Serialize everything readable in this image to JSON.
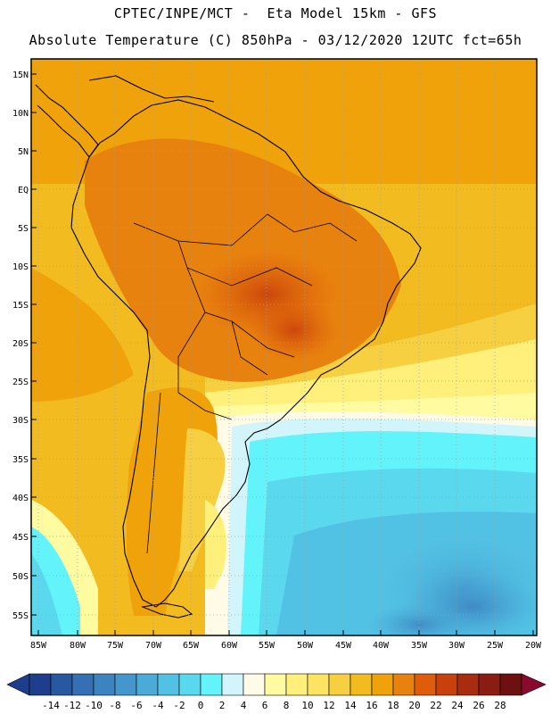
{
  "header": {
    "line1": "CPTEC/INPE/MCT -  Eta Model 15km - GFS",
    "line2": "Absolute Temperature (C) 850hPa - 03/12/2020 12UTC fct=65h"
  },
  "map": {
    "lat_labels": [
      "15N",
      "10N",
      "5N",
      "EQ",
      "5S",
      "10S",
      "15S",
      "20S",
      "25S",
      "30S",
      "35S",
      "40S",
      "45S",
      "50S",
      "55S"
    ],
    "lon_labels": [
      "85W",
      "80W",
      "75W",
      "70W",
      "65W",
      "60W",
      "55W",
      "50W",
      "45W",
      "40W",
      "35W",
      "30W",
      "25W",
      "20W"
    ]
  },
  "colorbar": {
    "labels": [
      "-14",
      "-12",
      "-10",
      "-8",
      "-6",
      "-4",
      "-2",
      "0",
      "2",
      "4",
      "6",
      "8",
      "10",
      "12",
      "14",
      "16",
      "18",
      "20",
      "22",
      "24",
      "26",
      "28"
    ],
    "colors": [
      "#1c3e8c",
      "#2858a0",
      "#3370b4",
      "#3b84c0",
      "#4497cc",
      "#4aabd8",
      "#52c2e4",
      "#5ad9ee",
      "#63f4fb",
      "#d2f5fb",
      "#fffbe6",
      "#fffba0",
      "#fff07c",
      "#fde362",
      "#f6d040",
      "#f2bb20",
      "#f0a20b",
      "#e8820e",
      "#de5c0a",
      "#c8400c",
      "#a82c10",
      "#8a1c14",
      "#6e1010"
    ]
  }
}
